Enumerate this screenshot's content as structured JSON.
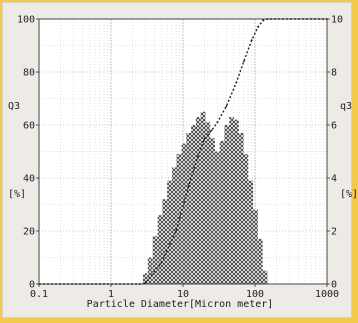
{
  "chart_data": {
    "type": "bar",
    "x_scale": "log",
    "xlim": [
      0.1,
      1000
    ],
    "ylim_left": [
      0,
      100
    ],
    "ylim_right": [
      0,
      10
    ],
    "xlabel": "Particle Diameter[Micron meter]",
    "ylabel_left_name": "Q3",
    "ylabel_left_unit": "[%]",
    "ylabel_right_name": "q3",
    "ylabel_right_unit": "[%]",
    "x_ticks": [
      0.1,
      1,
      10,
      100,
      1000
    ],
    "x_tick_labels": [
      "0.1",
      "1",
      "10",
      "100",
      "1000"
    ],
    "y_left_ticks": [
      0,
      20,
      40,
      60,
      80,
      100
    ],
    "y_left_tick_labels": [
      "0",
      "20",
      "40",
      "60",
      "80",
      "100"
    ],
    "y_right_ticks": [
      0,
      2,
      4,
      6,
      8,
      10
    ],
    "y_right_tick_labels": [
      "0",
      "2",
      "4",
      "6",
      "8",
      "10"
    ],
    "grid": true,
    "series": [
      {
        "kind": "histogram",
        "x": [
          3.0,
          3.5,
          4.1,
          4.8,
          5.6,
          6.5,
          7.6,
          8.8,
          10.3,
          12.0,
          14.0,
          16.3,
          19.0,
          22.1,
          25.7,
          29.9,
          34.9,
          40.6,
          47.3,
          55.1,
          64.2,
          74.8,
          87.1,
          101.4,
          118.2,
          137.7
        ],
        "values": [
          0.4,
          1.0,
          1.8,
          2.6,
          3.2,
          3.9,
          4.4,
          4.9,
          5.3,
          5.7,
          6.0,
          6.3,
          6.5,
          6.1,
          5.5,
          5.0,
          5.4,
          6.0,
          6.3,
          6.2,
          5.7,
          4.9,
          3.9,
          2.8,
          1.7,
          0.5
        ]
      },
      {
        "kind": "cumulative",
        "x": [
          0.1,
          2.5,
          3.0,
          5.0,
          8.0,
          12.0,
          16.0,
          20.0,
          25.0,
          30.0,
          40.0,
          55.0,
          70.0,
          90.0,
          110.0,
          130.0,
          150.0,
          1000
        ],
        "values": [
          0,
          0,
          0.4,
          8,
          20,
          37,
          48,
          55,
          58,
          61,
          67,
          76,
          84,
          92,
          97,
          99.5,
          100,
          100
        ]
      }
    ]
  }
}
